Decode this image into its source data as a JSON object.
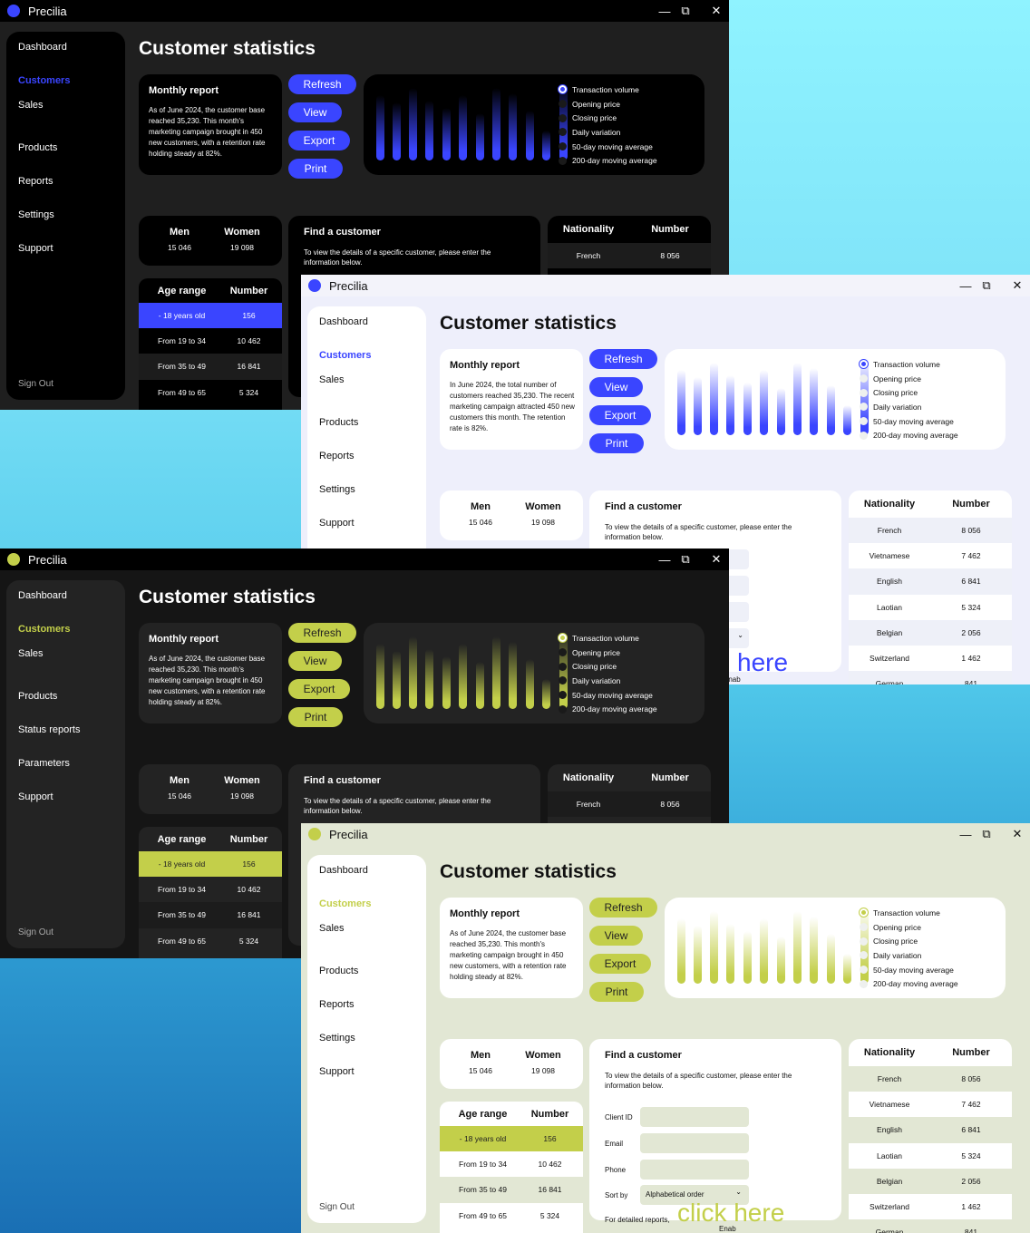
{
  "app_name": "Precilia",
  "window_controls": {
    "minimize": "—",
    "maximize": "⧉",
    "close": "✕"
  },
  "page_title": "Customer statistics",
  "nav_std": [
    "Dashboard",
    "Customers",
    "Sales",
    "Products",
    "Reports",
    "Settings",
    "Support"
  ],
  "nav_alt": [
    "Dashboard",
    "Customers",
    "Sales",
    "Products",
    "Status reports",
    "Parameters",
    "Support"
  ],
  "sign_out": "Sign Out",
  "report": {
    "title": "Monthly report",
    "text_a": "As of June 2024, the customer base reached 35,230. This month's marketing campaign brought in 450 new customers, with a retention rate holding steady at 82%.",
    "text_b": "In June 2024, the total number of customers reached 35,230. The recent marketing campaign attracted 450 new customers this month. The retention rate is 82%."
  },
  "buttons": {
    "refresh": "Refresh",
    "view": "View",
    "export": "Export",
    "print": "Print"
  },
  "legend": [
    "Transaction volume",
    "Opening price",
    "Closing price",
    "Daily variation",
    "50-day moving average",
    "200-day moving average"
  ],
  "chart_data": {
    "type": "bar",
    "values": [
      0.72,
      0.64,
      0.8,
      0.66,
      0.58,
      0.72,
      0.52,
      0.8,
      0.74,
      0.55,
      0.33,
      0.86
    ],
    "selected_series": "Transaction volume"
  },
  "gender": {
    "men_label": "Men",
    "men_value": "15 046",
    "women_label": "Women",
    "women_value": "19 098"
  },
  "find": {
    "title": "Find a customer",
    "description": "To view the details of a specific customer, please enter the information below.",
    "client_id": "Client ID",
    "email": "Email",
    "phone": "Phone",
    "sort_by": "Sort by",
    "sort_value": "Alphabetical order",
    "detail_prefix": "For detailed reports,",
    "click_here": "click here",
    "period": ".",
    "enable_fragment": "Enab",
    "here_fragment": "here"
  },
  "nationality": {
    "col1": "Nationality",
    "col2": "Number",
    "rows": [
      {
        "name": "French",
        "value": "8 056"
      },
      {
        "name": "Vietnamese",
        "value": "7 462"
      },
      {
        "name": "English",
        "value": "6 841"
      },
      {
        "name": "Laotian",
        "value": "5 324"
      },
      {
        "name": "Belgian",
        "value": "2 056"
      },
      {
        "name": "Switzerland",
        "value": "1 462"
      },
      {
        "name": "German",
        "value": "841"
      }
    ]
  },
  "age": {
    "col1": "Age range",
    "col2": "Number",
    "rows": [
      {
        "range": "- 18 years old",
        "value": "156"
      },
      {
        "range": "From 19 to 34",
        "value": "10 462"
      },
      {
        "range": "From 35 to 49",
        "value": "16 841"
      },
      {
        "range": "From 49 to 65",
        "value": "5 324"
      }
    ]
  },
  "themes": {
    "dark_blue": {
      "bg": "#1f1f1f",
      "panel": "#000000",
      "text": "#ffffff",
      "accent": "#3a45ff"
    },
    "light_blue": {
      "bg": "#eeeffb",
      "panel": "#ffffff",
      "text": "#111111",
      "accent": "#3a45ff"
    },
    "dark_lime": {
      "bg": "#151515",
      "panel": "#232323",
      "text": "#ffffff",
      "accent": "#c3cf4a"
    },
    "light_lime": {
      "bg": "#e2e7d4",
      "panel": "#ffffff",
      "text": "#111111",
      "accent": "#c3cf4a"
    }
  }
}
